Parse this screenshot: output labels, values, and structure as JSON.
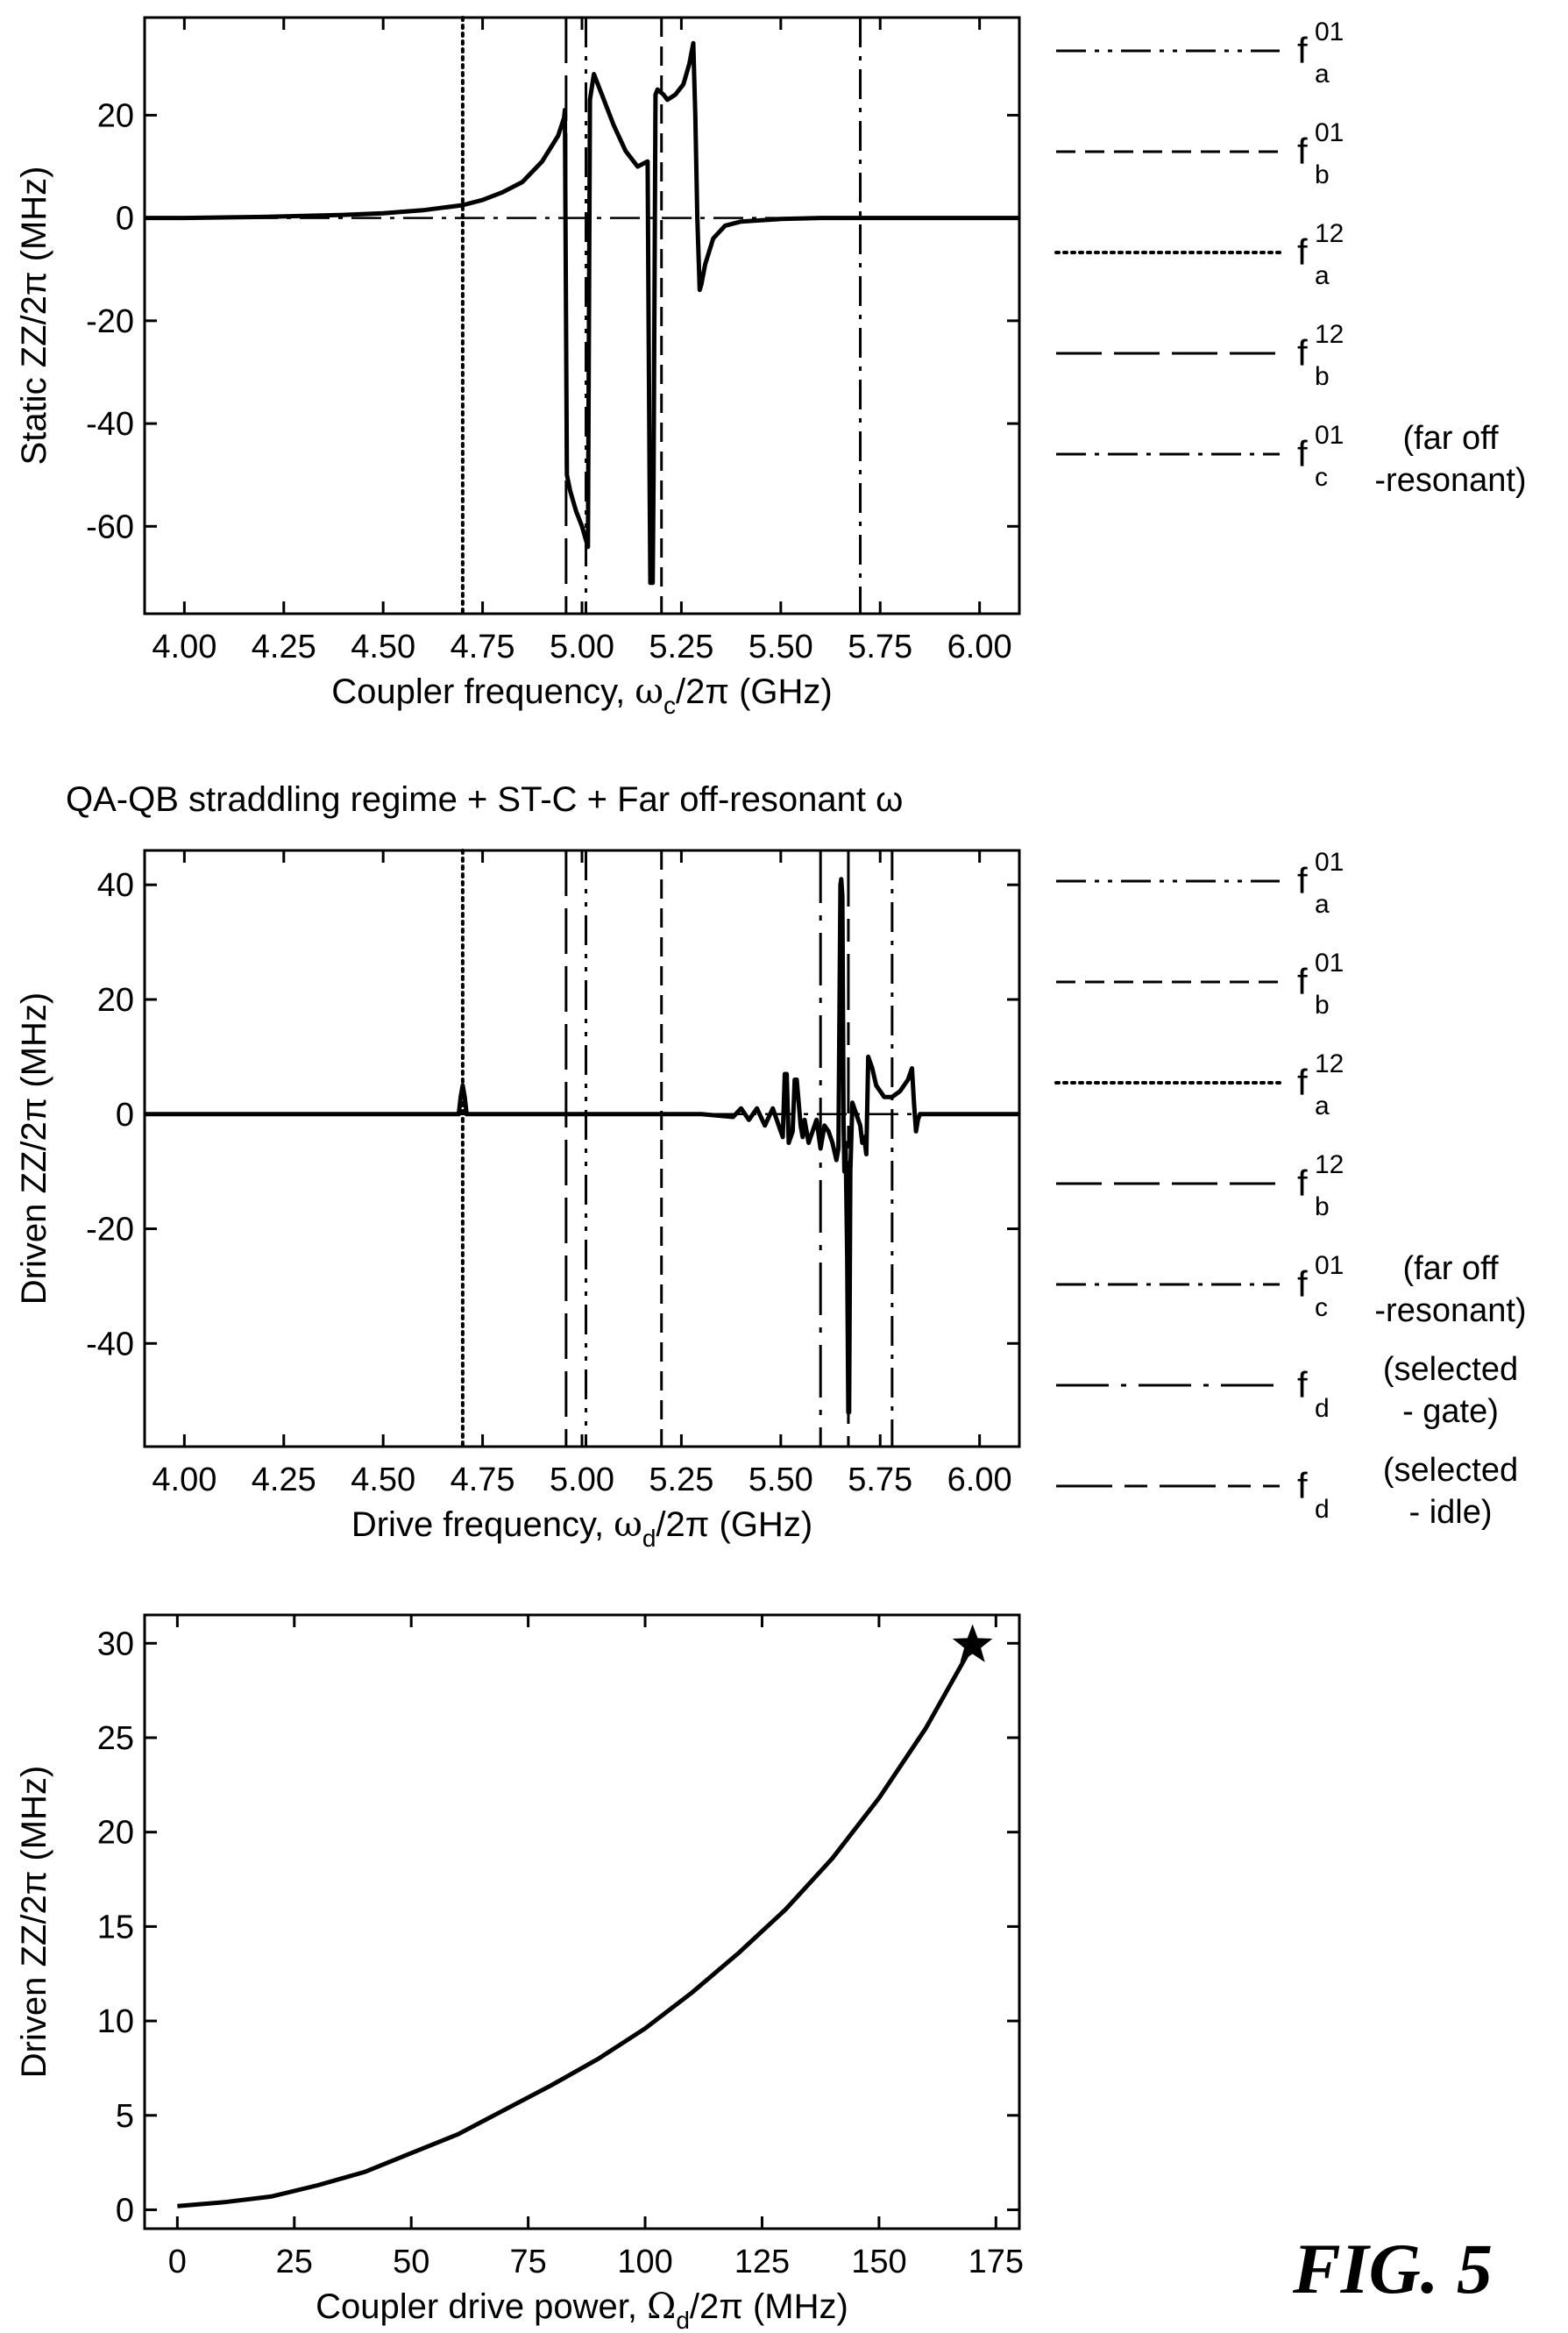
{
  "figure_label": "FIG. 5",
  "chart_data": [
    {
      "id": "static",
      "type": "line",
      "title": "",
      "xlabel": {
        "main": "Coupler frequency, ",
        "sym": "ω",
        "sub": "c",
        "rest": "/2π (GHz)"
      },
      "ylabel": "Static ZZ/2π (MHz)",
      "xlim": [
        3.9,
        6.1
      ],
      "ylim": [
        -77,
        39
      ],
      "xticks": [
        4.0,
        4.25,
        4.5,
        4.75,
        5.0,
        5.25,
        5.5,
        5.75,
        6.0
      ],
      "xtick_labels": [
        "4.00",
        "4.25",
        "4.50",
        "4.75",
        "5.00",
        "5.25",
        "5.50",
        "5.75",
        "6.00"
      ],
      "yticks": [
        20,
        0,
        -20,
        -40,
        -60
      ],
      "ytick_labels": [
        "20",
        "0",
        "-20",
        "-40",
        "-60"
      ],
      "grid": false,
      "legend_position": "right",
      "legend": [
        {
          "style": "dash-dot-dot",
          "base": "f",
          "sub": "a",
          "sup": "01",
          "note": []
        },
        {
          "style": "dashed",
          "base": "f",
          "sub": "b",
          "sup": "01",
          "note": []
        },
        {
          "style": "dotted",
          "base": "f",
          "sub": "a",
          "sup": "12",
          "note": []
        },
        {
          "style": "long-dash",
          "base": "f",
          "sub": "b",
          "sup": "12",
          "note": []
        },
        {
          "style": "dash-dot",
          "base": "f",
          "sub": "c",
          "sup": "01",
          "note": [
            "(far off",
            "-resonant)"
          ]
        }
      ],
      "vlines": [
        {
          "x": 4.7,
          "style": "dotted"
        },
        {
          "x": 4.96,
          "style": "long-dash"
        },
        {
          "x": 5.01,
          "style": "dash-dot-dot"
        },
        {
          "x": 5.2,
          "style": "dashed"
        },
        {
          "x": 5.7,
          "style": "dash-dot"
        }
      ],
      "hline": {
        "y": 0,
        "style": "dash-dot"
      },
      "series": [
        {
          "x": [
            3.9,
            4.0,
            4.2,
            4.4,
            4.5,
            4.6,
            4.7,
            4.75,
            4.8,
            4.85,
            4.9,
            4.94,
            4.955,
            4.957,
            4.962,
            4.97,
            4.985,
            5.0,
            5.015,
            5.02,
            5.03,
            5.05,
            5.08,
            5.11,
            5.14,
            5.165,
            5.17,
            5.172,
            5.178,
            5.18,
            5.185,
            5.19,
            5.205,
            5.215,
            5.235,
            5.255,
            5.27,
            5.28,
            5.285,
            5.29,
            5.296,
            5.3,
            5.31,
            5.33,
            5.36,
            5.4,
            5.5,
            5.6,
            5.8,
            6.0,
            6.1
          ],
          "y": [
            0,
            0,
            0.2,
            0.6,
            0.9,
            1.5,
            2.5,
            3.5,
            5,
            7,
            11,
            16,
            19.5,
            21,
            -50,
            -53,
            -57,
            -60,
            -64,
            23,
            28,
            24,
            18,
            13,
            10,
            11,
            -50,
            -71,
            -71,
            -50,
            24,
            25,
            24,
            23,
            24,
            26,
            30,
            34,
            20,
            0,
            -14,
            -13,
            -9,
            -4,
            -1.5,
            -0.7,
            -0.2,
            0,
            0,
            0,
            0
          ]
        }
      ]
    },
    {
      "id": "driven",
      "type": "line",
      "title": "QA-QB straddling regime + ST-C + Far off-resonant ω",
      "xlabel": {
        "main": "Drive frequency, ",
        "sym": "ω",
        "sub": "d",
        "rest": "/2π (GHz)"
      },
      "ylabel": "Driven ZZ/2π (MHz)",
      "xlim": [
        3.9,
        6.1
      ],
      "ylim": [
        -58,
        46
      ],
      "xticks": [
        4.0,
        4.25,
        4.5,
        4.75,
        5.0,
        5.25,
        5.5,
        5.75,
        6.0
      ],
      "xtick_labels": [
        "4.00",
        "4.25",
        "4.50",
        "4.75",
        "5.00",
        "5.25",
        "5.50",
        "5.75",
        "6.00"
      ],
      "yticks": [
        40,
        20,
        0,
        -20,
        -40
      ],
      "ytick_labels": [
        "40",
        "20",
        "0",
        "-20",
        "-40"
      ],
      "grid": false,
      "legend_position": "right",
      "legend": [
        {
          "style": "dash-dot-dot",
          "base": "f",
          "sub": "a",
          "sup": "01",
          "note": []
        },
        {
          "style": "dashed",
          "base": "f",
          "sub": "b",
          "sup": "01",
          "note": []
        },
        {
          "style": "dotted",
          "base": "f",
          "sub": "a",
          "sup": "12",
          "note": []
        },
        {
          "style": "long-dash",
          "base": "f",
          "sub": "b",
          "sup": "12",
          "note": []
        },
        {
          "style": "dash-dot",
          "base": "f",
          "sub": "c",
          "sup": "01",
          "note": [
            "(far off",
            "-resonant)"
          ]
        },
        {
          "style": "long-dash-dot",
          "base": "f",
          "sub": "d",
          "sup": "",
          "note": [
            "(selected",
            "- gate)"
          ]
        },
        {
          "style": "long-short-dash",
          "base": "f",
          "sub": "d",
          "sup": "",
          "note": [
            "(selected",
            "- idle)"
          ]
        }
      ],
      "vlines": [
        {
          "x": 4.7,
          "style": "dotted"
        },
        {
          "x": 4.96,
          "style": "long-dash"
        },
        {
          "x": 5.01,
          "style": "dash-dot-dot"
        },
        {
          "x": 5.2,
          "style": "dashed"
        },
        {
          "x": 5.6,
          "style": "long-dash-dot"
        },
        {
          "x": 5.67,
          "style": "long-short-dash"
        },
        {
          "x": 5.78,
          "style": "dash-dot"
        }
      ],
      "hline": {
        "y": 0,
        "style": "dash-dot"
      },
      "series": [
        {
          "x": [
            3.9,
            4.0,
            4.69,
            4.695,
            4.7,
            4.705,
            4.71,
            5.3,
            5.38,
            5.4,
            5.42,
            5.44,
            5.46,
            5.48,
            5.5,
            5.505,
            5.51,
            5.515,
            5.52,
            5.53,
            5.535,
            5.54,
            5.55,
            5.555,
            5.56,
            5.57,
            5.58,
            5.59,
            5.6,
            5.61,
            5.62,
            5.63,
            5.64,
            5.645,
            5.65,
            5.652,
            5.655,
            5.658,
            5.66,
            5.663,
            5.667,
            5.67,
            5.672,
            5.675,
            5.68,
            5.69,
            5.7,
            5.705,
            5.71,
            5.715,
            5.72,
            5.73,
            5.74,
            5.76,
            5.78,
            5.8,
            5.82,
            5.83,
            5.835,
            5.84,
            5.845,
            5.85,
            5.86,
            5.9,
            6.0,
            6.1
          ],
          "y": [
            0,
            0,
            0,
            3,
            5,
            3,
            0,
            0,
            -0.5,
            1,
            -1,
            1,
            -2,
            1,
            -3,
            -4,
            7,
            7,
            -5,
            -3,
            6,
            6,
            -2,
            -4,
            -1,
            -5,
            -3,
            -1,
            -6,
            -2,
            -3,
            -5,
            -8,
            -6,
            40,
            41,
            38,
            -2,
            -10,
            -5,
            -25,
            -52,
            -52,
            -10,
            2,
            0,
            -2,
            -5,
            -4,
            -7,
            10,
            8,
            5,
            3,
            3,
            4,
            6,
            8,
            2,
            -3,
            -1,
            0,
            0,
            0,
            0,
            0
          ]
        }
      ]
    },
    {
      "id": "power",
      "type": "line",
      "title": "",
      "xlabel": {
        "main": "Coupler drive power, ",
        "sym": "Ω",
        "sub": "d",
        "rest": "/2π (MHz)"
      },
      "ylabel": "Driven ZZ/2π (MHz)",
      "xlim": [
        -7,
        180
      ],
      "ylim": [
        -1,
        31.5
      ],
      "xticks": [
        0,
        25,
        50,
        75,
        100,
        125,
        150,
        175
      ],
      "xtick_labels": [
        "0",
        "25",
        "50",
        "75",
        "100",
        "125",
        "150",
        "175"
      ],
      "yticks": [
        30,
        25,
        20,
        15,
        10,
        5,
        0
      ],
      "ytick_labels": [
        "30",
        "25",
        "20",
        "15",
        "10",
        "5",
        "0"
      ],
      "grid": false,
      "legend_position": "none",
      "legend": [],
      "vlines": [],
      "hline": null,
      "marker": {
        "x": 170,
        "y": 29.9,
        "shape": "star"
      },
      "series": [
        {
          "x": [
            0,
            10,
            20,
            30,
            40,
            50,
            60,
            70,
            80,
            90,
            100,
            110,
            120,
            130,
            140,
            150,
            160,
            170
          ],
          "y": [
            0.2,
            0.4,
            0.7,
            1.3,
            2,
            3,
            4,
            5.3,
            6.6,
            8,
            9.6,
            11.5,
            13.6,
            15.9,
            18.6,
            21.8,
            25.5,
            29.9
          ]
        }
      ]
    }
  ]
}
